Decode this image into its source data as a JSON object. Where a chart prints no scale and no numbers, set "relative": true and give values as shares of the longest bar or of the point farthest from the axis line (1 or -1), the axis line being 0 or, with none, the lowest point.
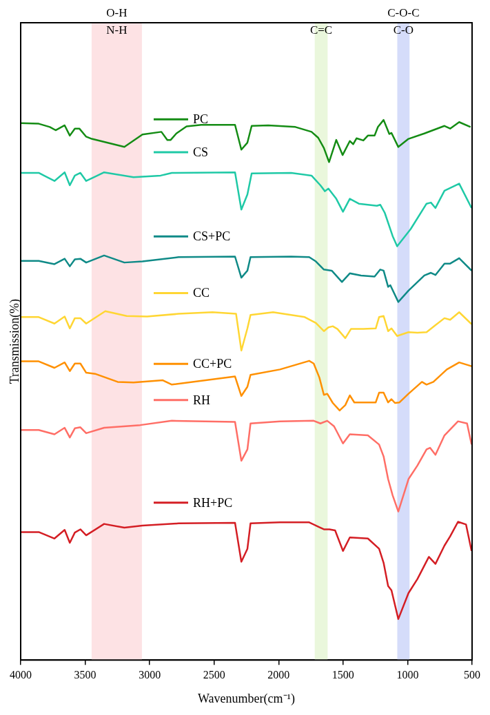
{
  "chart_data": {
    "type": "line",
    "relative": true,
    "xlabel": "Wavenumber(cm⁻¹)",
    "ylabel": "Transmission(%)",
    "xlim": [
      4000,
      500
    ],
    "xticks": [
      4000,
      3500,
      3000,
      2500,
      2000,
      1500,
      1000,
      500
    ],
    "grid": false,
    "legend": "left",
    "marker": "none",
    "line_style": "solid",
    "bands": [
      {
        "axis": "x",
        "from": 3450,
        "to": 3060,
        "label": "O-H\nN-H",
        "color": "#fde2e4"
      },
      {
        "axis": "x",
        "from": 1720,
        "to": 1620,
        "label": "C=C",
        "color": "#eaf7dc"
      },
      {
        "axis": "x",
        "from": 1080,
        "to": 985,
        "label": "C-O-C\nC-O",
        "color": "#d5dcfa"
      }
    ],
    "series": [
      {
        "name": "PC",
        "color": "#148c14",
        "x": [
          4000,
          3860,
          3774,
          3729,
          3659,
          3619,
          3580,
          3545,
          3492,
          3449,
          3196,
          3056,
          2909,
          2863,
          2837,
          2793,
          2714,
          2600,
          2338,
          2289,
          2242,
          2209,
          2080,
          1870,
          1745,
          1693,
          1649,
          1609,
          1553,
          1504,
          1448,
          1422,
          1396,
          1343,
          1308,
          1256,
          1230,
          1186,
          1142,
          1125,
          1072,
          993,
          870,
          714,
          670,
          600,
          512
        ],
        "values": [
          0.994,
          0.993,
          0.987,
          0.981,
          0.99,
          0.971,
          0.984,
          0.984,
          0.969,
          0.965,
          0.95,
          0.973,
          0.978,
          0.963,
          0.963,
          0.975,
          0.988,
          0.991,
          0.991,
          0.945,
          0.958,
          0.989,
          0.99,
          0.987,
          0.978,
          0.967,
          0.948,
          0.922,
          0.963,
          0.935,
          0.961,
          0.955,
          0.966,
          0.962,
          0.971,
          0.971,
          0.987,
          1,
          0.974,
          0.976,
          0.95,
          0.965,
          0.975,
          0.989,
          0.984,
          0.996,
          0.987
        ]
      },
      {
        "name": "CS",
        "color": "#1fc9a6",
        "x": [
          4000,
          3860,
          3738,
          3659,
          3619,
          3580,
          3537,
          3492,
          3353,
          3125,
          2915,
          2828,
          2338,
          2289,
          2242,
          2209,
          1903,
          1745,
          1676,
          1641,
          1614,
          1553,
          1501,
          1448,
          1378,
          1238,
          1212,
          1177,
          1116,
          1081,
          976,
          853,
          819,
          784,
          714,
          600,
          504
        ],
        "values": [
          0.902,
          0.902,
          0.887,
          0.903,
          0.879,
          0.897,
          0.902,
          0.887,
          0.903,
          0.894,
          0.897,
          0.902,
          0.903,
          0.834,
          0.862,
          0.901,
          0.902,
          0.897,
          0.879,
          0.868,
          0.873,
          0.854,
          0.83,
          0.854,
          0.845,
          0.841,
          0.843,
          0.828,
          0.785,
          0.766,
          0.798,
          0.845,
          0.847,
          0.837,
          0.869,
          0.882,
          0.837
        ]
      },
      {
        "name": "CS+PC",
        "color": "#0f8a87",
        "x": [
          4000,
          3860,
          3738,
          3659,
          3619,
          3580,
          3537,
          3492,
          3353,
          3196,
          3056,
          2776,
          2338,
          2289,
          2242,
          2218,
          1903,
          1763,
          1711,
          1649,
          1588,
          1509,
          1448,
          1361,
          1256,
          1212,
          1186,
          1151,
          1134,
          1072,
          993,
          870,
          819,
          784,
          714,
          670,
          600,
          504
        ],
        "values": [
          0.739,
          0.739,
          0.733,
          0.743,
          0.729,
          0.742,
          0.743,
          0.736,
          0.749,
          0.736,
          0.738,
          0.746,
          0.747,
          0.708,
          0.721,
          0.746,
          0.747,
          0.746,
          0.738,
          0.723,
          0.721,
          0.7,
          0.716,
          0.712,
          0.71,
          0.723,
          0.721,
          0.691,
          0.694,
          0.663,
          0.684,
          0.712,
          0.717,
          0.713,
          0.734,
          0.734,
          0.744,
          0.721
        ]
      },
      {
        "name": "CC",
        "color": "#ffd633",
        "x": [
          4000,
          3860,
          3738,
          3659,
          3619,
          3580,
          3537,
          3492,
          3344,
          3178,
          3020,
          2776,
          2513,
          2330,
          2289,
          2242,
          2218,
          2043,
          1798,
          1711,
          1649,
          1614,
          1580,
          1544,
          1483,
          1439,
          1343,
          1247,
          1221,
          1186,
          1151,
          1125,
          1081,
          993,
          924,
          853,
          784,
          714,
          670,
          600,
          504
        ],
        "values": [
          0.635,
          0.635,
          0.623,
          0.636,
          0.614,
          0.633,
          0.633,
          0.623,
          0.646,
          0.637,
          0.636,
          0.641,
          0.644,
          0.641,
          0.573,
          0.614,
          0.639,
          0.644,
          0.635,
          0.624,
          0.609,
          0.616,
          0.618,
          0.613,
          0.596,
          0.613,
          0.613,
          0.614,
          0.635,
          0.637,
          0.609,
          0.614,
          0.6,
          0.607,
          0.606,
          0.607,
          0.62,
          0.633,
          0.63,
          0.644,
          0.622
        ]
      },
      {
        "name": "CC+PC",
        "color": "#ff9000",
        "x": [
          4000,
          3860,
          3738,
          3659,
          3619,
          3580,
          3537,
          3492,
          3423,
          3248,
          3125,
          2898,
          2828,
          2338,
          2289,
          2242,
          2218,
          1990,
          1763,
          1728,
          1684,
          1649,
          1623,
          1580,
          1527,
          1483,
          1448,
          1413,
          1343,
          1247,
          1221,
          1186,
          1151,
          1125,
          1098,
          1063,
          993,
          889,
          853,
          800,
          696,
          600,
          504
        ],
        "values": [
          0.553,
          0.553,
          0.541,
          0.551,
          0.535,
          0.549,
          0.549,
          0.532,
          0.53,
          0.515,
          0.514,
          0.518,
          0.51,
          0.525,
          0.489,
          0.506,
          0.528,
          0.538,
          0.554,
          0.549,
          0.523,
          0.491,
          0.493,
          0.476,
          0.462,
          0.472,
          0.49,
          0.477,
          0.477,
          0.477,
          0.495,
          0.495,
          0.477,
          0.483,
          0.476,
          0.477,
          0.493,
          0.515,
          0.51,
          0.515,
          0.538,
          0.551,
          0.544
        ]
      },
      {
        "name": "RH",
        "color": "#ff6e66",
        "x": [
          4000,
          3860,
          3738,
          3659,
          3619,
          3580,
          3537,
          3492,
          3353,
          3073,
          2828,
          2338,
          2289,
          2242,
          2218,
          1990,
          1728,
          1676,
          1623,
          1571,
          1553,
          1501,
          1448,
          1308,
          1221,
          1186,
          1151,
          1116,
          1072,
          993,
          924,
          853,
          826,
          784,
          714,
          609,
          539,
          504
        ],
        "values": [
          0.426,
          0.426,
          0.418,
          0.43,
          0.412,
          0.429,
          0.431,
          0.42,
          0.43,
          0.435,
          0.443,
          0.441,
          0.369,
          0.39,
          0.438,
          0.442,
          0.443,
          0.438,
          0.443,
          0.433,
          0.425,
          0.401,
          0.418,
          0.416,
          0.399,
          0.377,
          0.335,
          0.305,
          0.275,
          0.335,
          0.36,
          0.39,
          0.393,
          0.38,
          0.416,
          0.442,
          0.438,
          0.399
        ]
      },
      {
        "name": "RH+PC",
        "color": "#d41e24",
        "x": [
          4000,
          3860,
          3738,
          3659,
          3619,
          3580,
          3537,
          3492,
          3353,
          3196,
          3056,
          2776,
          2338,
          2289,
          2242,
          2218,
          1990,
          1763,
          1693,
          1649,
          1606,
          1562,
          1501,
          1448,
          1308,
          1221,
          1186,
          1151,
          1125,
          1072,
          993,
          924,
          835,
          784,
          714,
          670,
          609,
          547,
          504
        ],
        "values": [
          0.237,
          0.237,
          0.225,
          0.241,
          0.217,
          0.236,
          0.242,
          0.231,
          0.252,
          0.245,
          0.249,
          0.253,
          0.254,
          0.182,
          0.206,
          0.253,
          0.255,
          0.255,
          0.247,
          0.242,
          0.242,
          0.24,
          0.202,
          0.227,
          0.225,
          0.206,
          0.18,
          0.137,
          0.129,
          0.076,
          0.124,
          0.15,
          0.191,
          0.178,
          0.212,
          0.229,
          0.256,
          0.251,
          0.202
        ]
      }
    ]
  }
}
